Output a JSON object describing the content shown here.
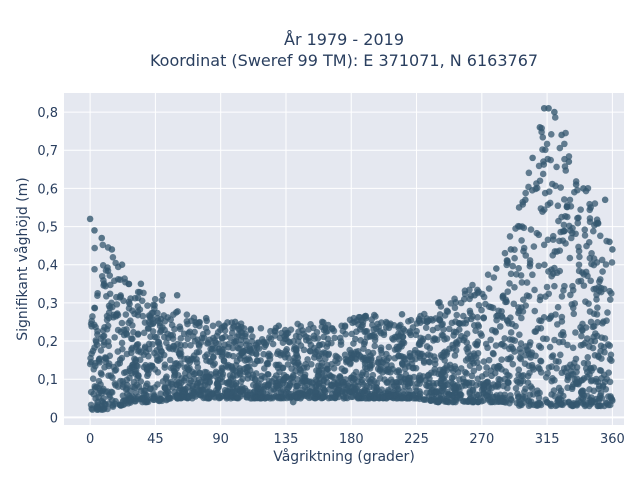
{
  "chart_data": {
    "type": "scatter",
    "title_line1": "År 1979 - 2019",
    "title_line2": "Koordinat (Sweref 99 TM): E 371071, N 6163767",
    "xlabel": "Vågriktning (grader)",
    "ylabel": "Signifikant våghöjd (m)",
    "xlim": [
      -18,
      368
    ],
    "ylim": [
      -0.02,
      0.85
    ],
    "x_ticks": [
      0,
      45,
      90,
      135,
      180,
      225,
      270,
      315,
      360
    ],
    "x_tick_labels": [
      "0",
      "45",
      "90",
      "135",
      "180",
      "225",
      "270",
      "315",
      "360"
    ],
    "y_ticks": [
      0,
      0.1,
      0.2,
      0.3,
      0.4,
      0.5,
      0.6,
      0.7,
      0.8
    ],
    "y_tick_labels": [
      "0",
      "0,1",
      "0,2",
      "0,3",
      "0,4",
      "0,5",
      "0,6",
      "0,7",
      "0,8"
    ],
    "grid": true,
    "marker_color": "#34576f",
    "plot_bg": "#e5e8f0",
    "envelope": {
      "x": [
        0,
        10,
        20,
        30,
        45,
        60,
        75,
        90,
        105,
        120,
        135,
        150,
        165,
        180,
        195,
        210,
        225,
        240,
        255,
        270,
        285,
        295,
        305,
        315,
        325,
        335,
        345,
        350,
        355,
        360
      ],
      "y_max": [
        0.5,
        0.46,
        0.4,
        0.35,
        0.32,
        0.28,
        0.26,
        0.25,
        0.25,
        0.24,
        0.24,
        0.25,
        0.25,
        0.26,
        0.27,
        0.25,
        0.26,
        0.3,
        0.33,
        0.36,
        0.42,
        0.55,
        0.7,
        0.8,
        0.78,
        0.68,
        0.6,
        0.55,
        0.5,
        0.45
      ],
      "y_min": [
        0.02,
        0.02,
        0.03,
        0.04,
        0.04,
        0.05,
        0.05,
        0.05,
        0.05,
        0.05,
        0.05,
        0.05,
        0.05,
        0.05,
        0.05,
        0.05,
        0.05,
        0.04,
        0.04,
        0.04,
        0.04,
        0.03,
        0.03,
        0.03,
        0.03,
        0.03,
        0.03,
        0.03,
        0.03,
        0.03
      ]
    },
    "sample_points": [
      {
        "x": 0,
        "y": 0.52
      },
      {
        "x": 3,
        "y": 0.49
      },
      {
        "x": 8,
        "y": 0.47
      },
      {
        "x": 15,
        "y": 0.44
      },
      {
        "x": 22,
        "y": 0.4
      },
      {
        "x": 35,
        "y": 0.35
      },
      {
        "x": 50,
        "y": 0.32
      },
      {
        "x": 60,
        "y": 0.32
      },
      {
        "x": 80,
        "y": 0.26
      },
      {
        "x": 100,
        "y": 0.25
      },
      {
        "x": 130,
        "y": 0.24
      },
      {
        "x": 160,
        "y": 0.25
      },
      {
        "x": 190,
        "y": 0.26
      },
      {
        "x": 215,
        "y": 0.27
      },
      {
        "x": 240,
        "y": 0.3
      },
      {
        "x": 265,
        "y": 0.32
      },
      {
        "x": 280,
        "y": 0.39
      },
      {
        "x": 290,
        "y": 0.44
      },
      {
        "x": 296,
        "y": 0.5
      },
      {
        "x": 300,
        "y": 0.57
      },
      {
        "x": 305,
        "y": 0.68
      },
      {
        "x": 310,
        "y": 0.76
      },
      {
        "x": 313,
        "y": 0.81
      },
      {
        "x": 316,
        "y": 0.81
      },
      {
        "x": 320,
        "y": 0.8
      },
      {
        "x": 325,
        "y": 0.74
      },
      {
        "x": 330,
        "y": 0.67
      },
      {
        "x": 335,
        "y": 0.61
      },
      {
        "x": 340,
        "y": 0.6
      },
      {
        "x": 345,
        "y": 0.55
      },
      {
        "x": 350,
        "y": 0.51
      },
      {
        "x": 355,
        "y": 0.57
      },
      {
        "x": 358,
        "y": 0.46
      },
      {
        "x": 360,
        "y": 0.44
      },
      {
        "x": 140,
        "y": 0.04
      },
      {
        "x": 250,
        "y": 0.04
      },
      {
        "x": 5,
        "y": 0.02
      },
      {
        "x": 60,
        "y": 0.05
      }
    ]
  }
}
